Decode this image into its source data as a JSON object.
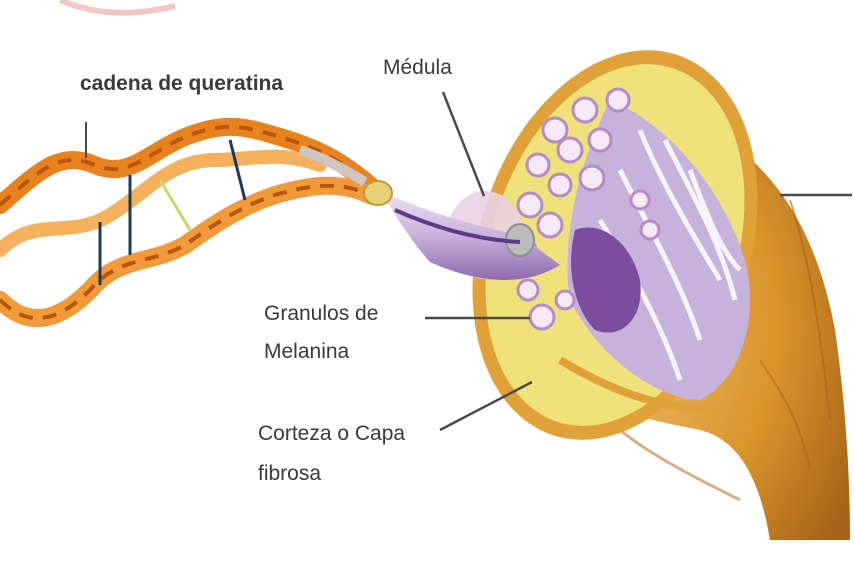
{
  "labels": {
    "keratin_chain": "cadena de queratina",
    "medulla": "Médula",
    "melanin_line1": "Granulos de",
    "melanin_line2": "Melanina",
    "cortex_line1": "Corteza o Capa",
    "cortex_line2": "fibrosa"
  },
  "colors": {
    "helix": "#e8821e",
    "helix_dark": "#b8560c",
    "cuticle": "#d9942a",
    "cortex": "#efe27a",
    "fiber": "#c7b2dc",
    "medulla": "#7b4d9c",
    "pointer": "#4a4a4a"
  }
}
